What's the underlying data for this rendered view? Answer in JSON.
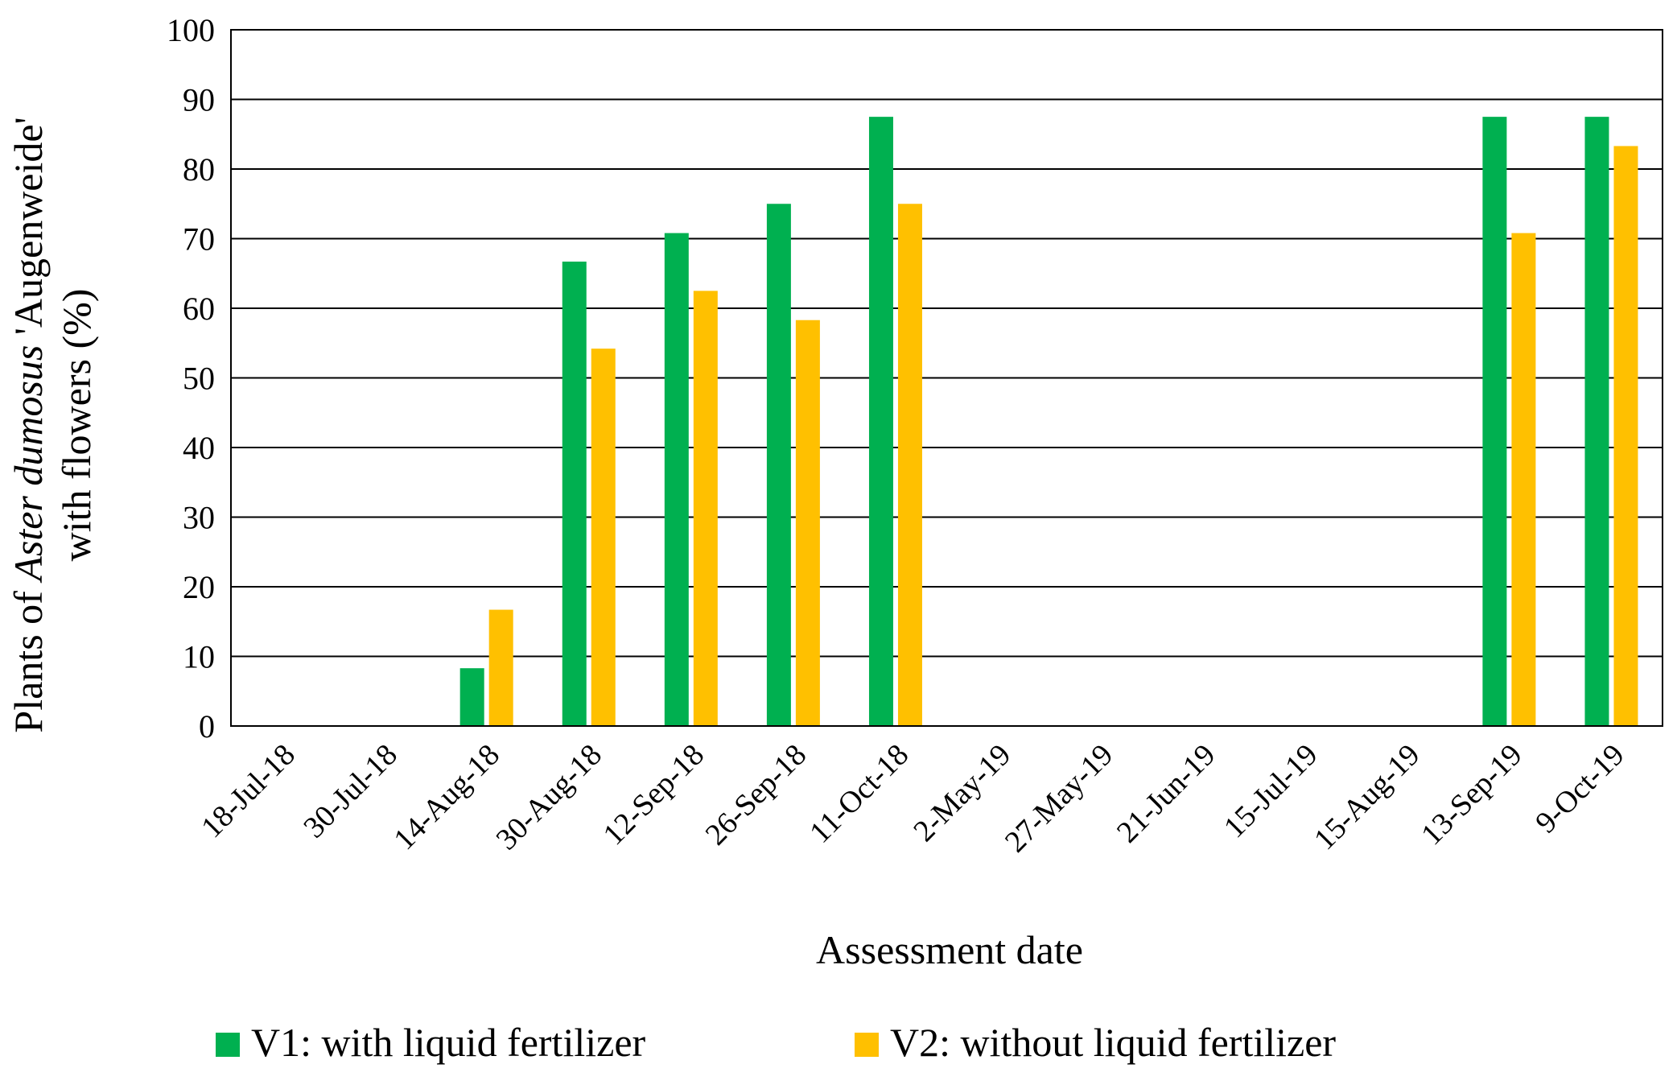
{
  "chart_data": {
    "type": "bar",
    "title": "",
    "xlabel": "Assessment date",
    "ylabel_parts": [
      "Plants of ",
      "Aster dumosus",
      " 'Augenweide'"
    ],
    "ylabel_line2": "with flowers (%)",
    "ylim": [
      0,
      100
    ],
    "yticks": [
      0,
      10,
      20,
      30,
      40,
      50,
      60,
      70,
      80,
      90,
      100
    ],
    "grid": true,
    "legend_position": "bottom",
    "categories": [
      "18-Jul-18",
      "30-Jul-18",
      "14-Aug-18",
      "30-Aug-18",
      "12-Sep-18",
      "26-Sep-18",
      "11-Oct-18",
      "2-May-19",
      "27-May-19",
      "21-Jun-19",
      "15-Jul-19",
      "15-Aug-19",
      "13-Sep-19",
      "9-Oct-19"
    ],
    "series": [
      {
        "name": "V1: with liquid fertilizer",
        "color": "#00b050",
        "values": [
          0,
          0,
          8.3,
          66.7,
          70.8,
          75.0,
          87.5,
          0,
          0,
          0,
          0,
          0,
          87.5,
          87.5
        ]
      },
      {
        "name": "V2: without liquid fertilizer",
        "color": "#ffc000",
        "values": [
          0,
          0,
          16.7,
          54.2,
          62.5,
          58.3,
          75.0,
          0,
          0,
          0,
          0,
          0,
          70.8,
          83.3
        ]
      }
    ]
  }
}
